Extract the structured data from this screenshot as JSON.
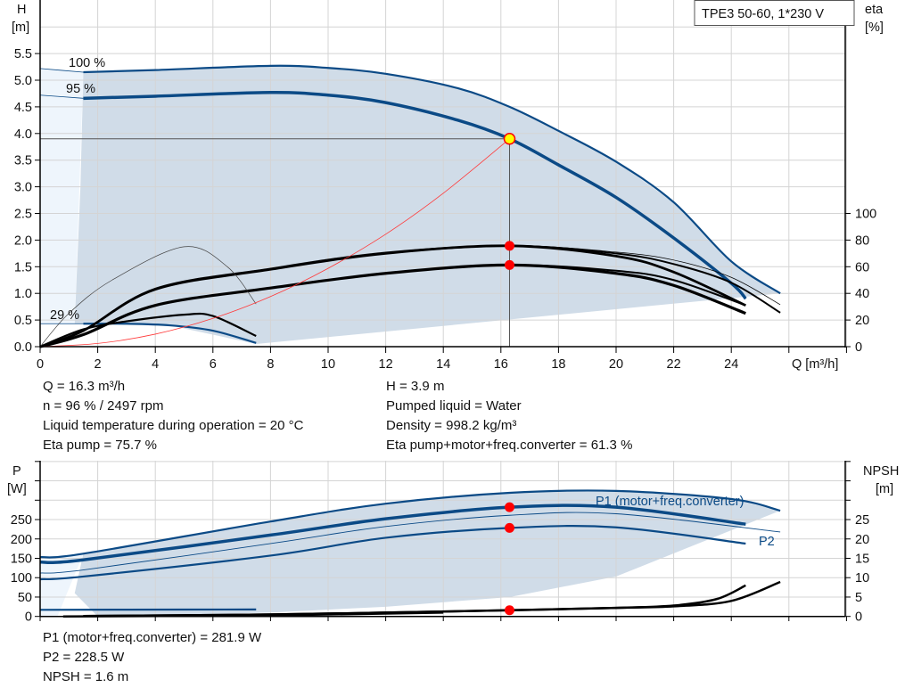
{
  "title": "TPE3 50-60, 1*230 V",
  "colors": {
    "curve": "#0b4a86",
    "fill": "#d0dce8",
    "fill_light": "#eef5fc",
    "system": "#ff3b3b",
    "duty_point": "#ffff00",
    "marker": "#ff0000",
    "grid": "#d4d4d4"
  },
  "info_top": {
    "left": [
      "Q = 16.3 m³/h",
      "n = 96 % / 2497 rpm",
      "Liquid temperature during operation = 20 °C",
      "Eta pump = 75.7 %"
    ],
    "right": [
      "H = 3.9 m",
      "Pumped liquid = Water",
      "Density = 998.2 kg/m³",
      "Eta pump+motor+freq.converter = 61.3 %"
    ]
  },
  "info_bottom": [
    "P1 (motor+freq.converter) = 281.9 W",
    "P2 = 228.5 W",
    "NPSH = 1.6 m"
  ],
  "chart_data": [
    {
      "type": "line",
      "xlabel": "Q [m³/h]",
      "ylabel": [
        "H",
        "[m]"
      ],
      "y2label": [
        "eta",
        "[%]"
      ],
      "xlim": [
        0,
        28
      ],
      "ylim": [
        0,
        6.5
      ],
      "y2lim": [
        0,
        163
      ],
      "xticks": [
        "0",
        "2",
        "4",
        "6",
        "8",
        "10",
        "12",
        "14",
        "16",
        "18",
        "20",
        "22",
        "24"
      ],
      "yticks": [
        "0.0",
        "0.5",
        "1.0",
        "1.5",
        "2.0",
        "2.5",
        "3.0",
        "3.5",
        "4.0",
        "4.5",
        "5.0",
        "5.5"
      ],
      "y2ticks": [
        "0",
        "20",
        "40",
        "60",
        "80",
        "100"
      ],
      "grid": true,
      "head_curves": [
        {
          "name": "100 %",
          "points": [
            [
              0,
              5.22
            ],
            [
              1.5,
              5.15
            ],
            [
              4,
              5.19
            ],
            [
              8,
              5.27
            ],
            [
              10,
              5.23
            ],
            [
              12,
              5.12
            ],
            [
              14.5,
              4.85
            ],
            [
              16.3,
              4.5
            ],
            [
              18,
              4.05
            ],
            [
              20,
              3.47
            ],
            [
              22,
              2.71
            ],
            [
              24,
              1.6
            ],
            [
              25.7,
              1.0
            ]
          ]
        },
        {
          "name": "95 %",
          "points": [
            [
              0,
              4.72
            ],
            [
              1.5,
              4.66
            ],
            [
              4,
              4.7
            ],
            [
              8,
              4.77
            ],
            [
              10,
              4.72
            ],
            [
              12,
              4.58
            ],
            [
              14.5,
              4.25
            ],
            [
              16.3,
              3.9
            ],
            [
              18,
              3.41
            ],
            [
              20,
              2.8
            ],
            [
              22,
              2.04
            ],
            [
              24,
              1.19
            ],
            [
              24.5,
              0.9
            ]
          ]
        },
        {
          "name": "29 %",
          "points": [
            [
              0,
              0.43
            ],
            [
              1.5,
              0.43
            ],
            [
              3,
              0.43
            ],
            [
              4.5,
              0.4
            ],
            [
              6,
              0.3
            ],
            [
              7.5,
              0.07
            ]
          ]
        }
      ],
      "eta_curves": [
        {
          "points": [
            [
              0,
              0
            ],
            [
              1.5,
              12
            ],
            [
              4,
              43
            ],
            [
              8,
              58
            ],
            [
              12,
              70
            ],
            [
              16.3,
              75.7
            ],
            [
              20,
              68
            ],
            [
              22,
              56
            ],
            [
              24.5,
              31
            ]
          ]
        },
        {
          "points": [
            [
              0,
              0
            ],
            [
              1.5,
              12
            ],
            [
              4,
              43
            ],
            [
              8,
              58
            ],
            [
              12,
              70
            ],
            [
              16.3,
              75.7
            ],
            [
              20,
              70
            ],
            [
              22,
              62
            ],
            [
              24,
              48
            ],
            [
              25.7,
              25.5
            ]
          ]
        },
        {
          "points": [
            [
              0,
              0
            ],
            [
              1.5,
              12.5
            ],
            [
              4,
              44
            ],
            [
              8,
              59
            ],
            [
              12,
              71
            ],
            [
              16.3,
              76
            ],
            [
              20,
              71
            ],
            [
              22,
              65
            ],
            [
              24,
              52
            ],
            [
              25.7,
              31.5
            ]
          ]
        },
        {
          "points": [
            [
              0,
              0
            ],
            [
              1.5,
              9
            ],
            [
              4,
              31
            ],
            [
              8,
              44
            ],
            [
              12,
              55
            ],
            [
              16.3,
              61.3
            ],
            [
              20,
              55
            ],
            [
              22,
              46
            ],
            [
              24.5,
              25
            ]
          ]
        },
        {
          "points": [
            [
              0,
              0
            ],
            [
              1.5,
              9
            ],
            [
              4,
              31
            ],
            [
              8,
              44
            ],
            [
              12,
              55
            ],
            [
              16.3,
              61.3
            ],
            [
              20,
              57
            ],
            [
              22,
              50
            ],
            [
              24.5,
              31
            ]
          ]
        },
        {
          "points": [
            [
              0,
              0
            ],
            [
              1.5,
              13
            ],
            [
              3,
              19
            ],
            [
              5,
              24
            ],
            [
              6,
              23
            ],
            [
              7.5,
              8
            ]
          ]
        },
        {
          "points": [
            [
              0,
              0
            ],
            [
              1,
              25
            ],
            [
              2.5,
              50
            ],
            [
              5,
              75
            ],
            [
              6.5,
              60
            ],
            [
              7.5,
              32
            ]
          ]
        }
      ],
      "system_curve": {
        "points": [
          [
            0,
            0
          ],
          [
            2,
            0.06
          ],
          [
            4,
            0.235
          ],
          [
            6,
            0.53
          ],
          [
            8,
            0.94
          ],
          [
            10,
            1.47
          ],
          [
            12,
            2.11
          ],
          [
            14,
            2.88
          ],
          [
            16.3,
            3.9
          ]
        ]
      },
      "duty_point": {
        "Q": 16.3,
        "H": 3.9,
        "eta_pump": 75.7,
        "eta_total": 61.3
      }
    },
    {
      "type": "line",
      "ylabel": [
        "P",
        "[W]"
      ],
      "y2label": [
        "NPSH",
        "[m]"
      ],
      "xlim": [
        0,
        28
      ],
      "ylim": [
        0,
        400
      ],
      "y2lim": [
        0,
        40
      ],
      "yticks": [
        "0",
        "50",
        "100",
        "150",
        "200",
        "250"
      ],
      "y2ticks": [
        "0",
        "5",
        "10",
        "15",
        "20",
        "25"
      ],
      "grid": true,
      "power_curves": [
        {
          "points": [
            [
              0,
              153
            ],
            [
              1.5,
              162
            ],
            [
              8,
              245
            ],
            [
              12,
              291
            ],
            [
              16.3,
              319
            ],
            [
              20,
              324
            ],
            [
              24,
              303
            ],
            [
              25.7,
              273
            ]
          ]
        },
        {
          "name": "P1 (motor+freq.converter)",
          "points": [
            [
              0,
              140
            ],
            [
              1.5,
              146
            ],
            [
              8,
              210
            ],
            [
              12,
              252
            ],
            [
              16.3,
              281.9
            ],
            [
              20,
              282
            ],
            [
              24.5,
              238
            ]
          ]
        },
        {
          "points": [
            [
              0,
              112
            ],
            [
              1.5,
              120
            ],
            [
              8,
              188
            ],
            [
              12,
              232
            ],
            [
              16.3,
              261
            ],
            [
              20,
              265
            ],
            [
              25.7,
              218
            ]
          ]
        },
        {
          "name": "P2",
          "points": [
            [
              0,
              96
            ],
            [
              1.5,
              103
            ],
            [
              8,
              157
            ],
            [
              12,
              203
            ],
            [
              16.3,
              228.5
            ],
            [
              20,
              230
            ],
            [
              24.5,
              188
            ]
          ]
        },
        {
          "points": [
            [
              0,
              17
            ],
            [
              3,
              17.5
            ],
            [
              7.5,
              18
            ]
          ]
        }
      ],
      "npsh_curves": [
        {
          "points": [
            [
              1.5,
              0.1
            ],
            [
              8,
              0.5
            ],
            [
              12,
              1.0
            ],
            [
              16.3,
              1.6
            ],
            [
              20,
              2.2
            ],
            [
              22,
              2.8
            ],
            [
              23.5,
              4.5
            ],
            [
              24.5,
              8.0
            ]
          ]
        },
        {
          "points": [
            [
              1.5,
              0.1
            ],
            [
              8,
              0.5
            ],
            [
              12,
              1.0
            ],
            [
              16.3,
              1.6
            ],
            [
              20,
              2.2
            ],
            [
              22,
              2.6
            ],
            [
              24,
              4.0
            ],
            [
              25.7,
              8.9
            ]
          ]
        }
      ],
      "duty_point": {
        "Q": 16.3,
        "P1": 281.9,
        "P2": 228.5,
        "NPSH": 1.6
      }
    }
  ]
}
